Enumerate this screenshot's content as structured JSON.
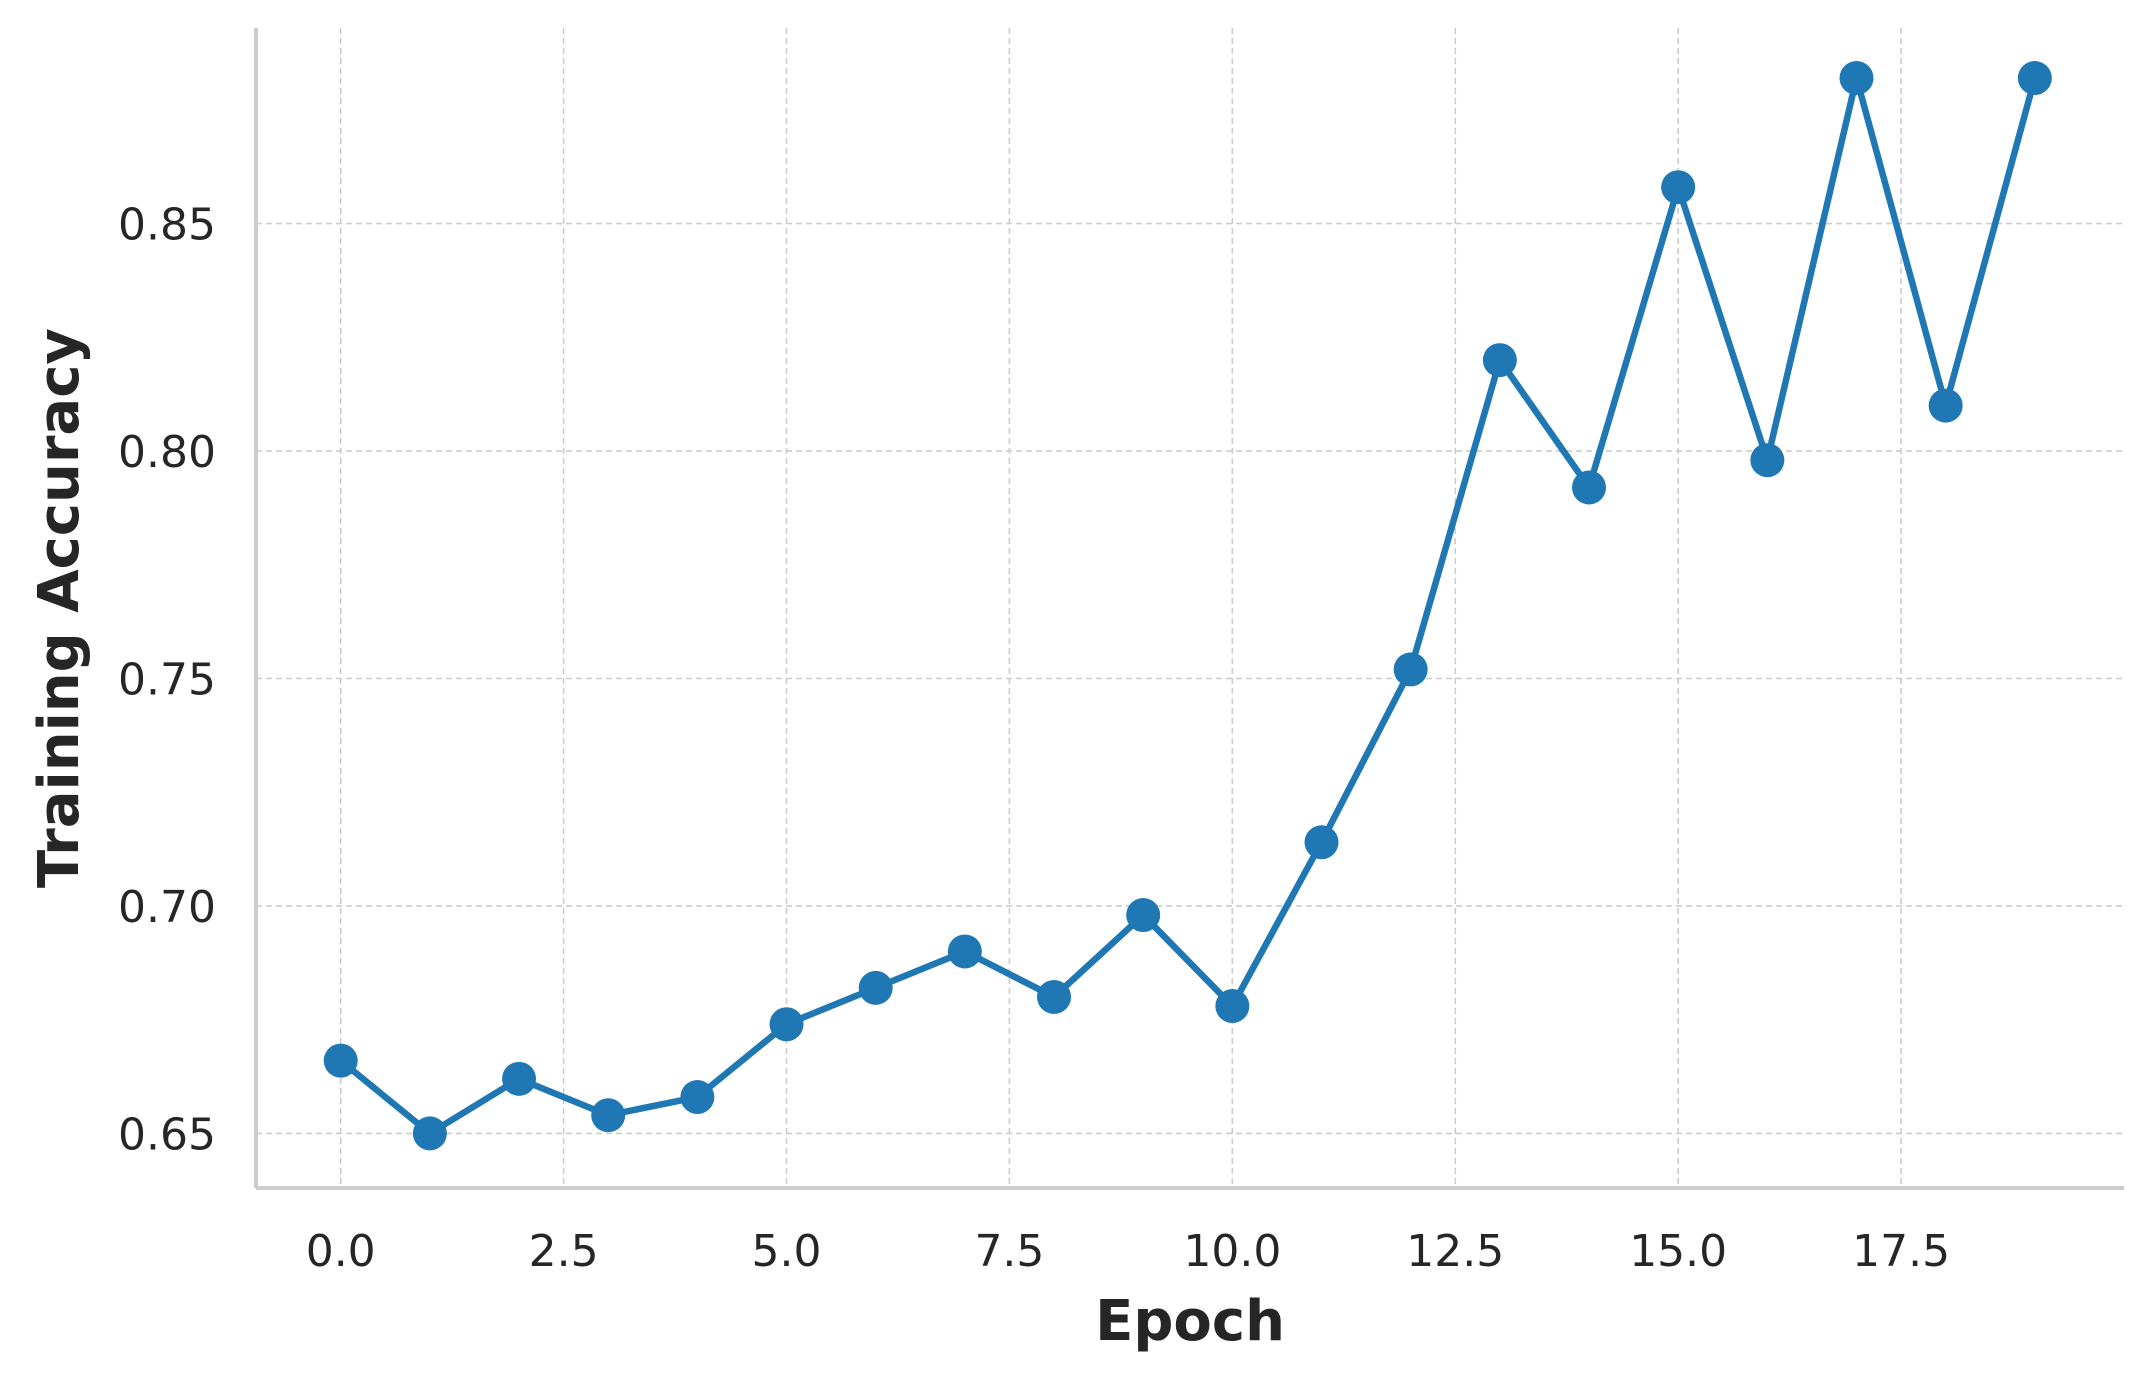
{
  "chart_data": {
    "type": "line",
    "title": "",
    "xlabel": "Epoch",
    "ylabel": "Training Accuracy",
    "xlim": [
      -0.95,
      20.0
    ],
    "ylim": [
      0.638,
      0.893
    ],
    "xticks": [
      0.0,
      2.5,
      5.0,
      7.5,
      10.0,
      12.5,
      15.0,
      17.5
    ],
    "xtick_labels": [
      "0.0",
      "2.5",
      "5.0",
      "7.5",
      "10.0",
      "12.5",
      "15.0",
      "17.5"
    ],
    "yticks": [
      0.65,
      0.7,
      0.75,
      0.8,
      0.85
    ],
    "ytick_labels": [
      "0.65",
      "0.70",
      "0.75",
      "0.80",
      "0.85"
    ],
    "grid": true,
    "legend": "none",
    "series": [
      {
        "color": "#1f77b4",
        "marker": "circle",
        "x": [
          0,
          1,
          2,
          3,
          4,
          5,
          6,
          7,
          8,
          9,
          10,
          11,
          12,
          13,
          14,
          15,
          16,
          17,
          18,
          19
        ],
        "y": [
          0.666,
          0.65,
          0.662,
          0.654,
          0.658,
          0.674,
          0.682,
          0.69,
          0.68,
          0.698,
          0.678,
          0.714,
          0.752,
          0.82,
          0.792,
          0.858,
          0.798,
          0.882,
          0.81,
          0.882
        ]
      }
    ]
  }
}
